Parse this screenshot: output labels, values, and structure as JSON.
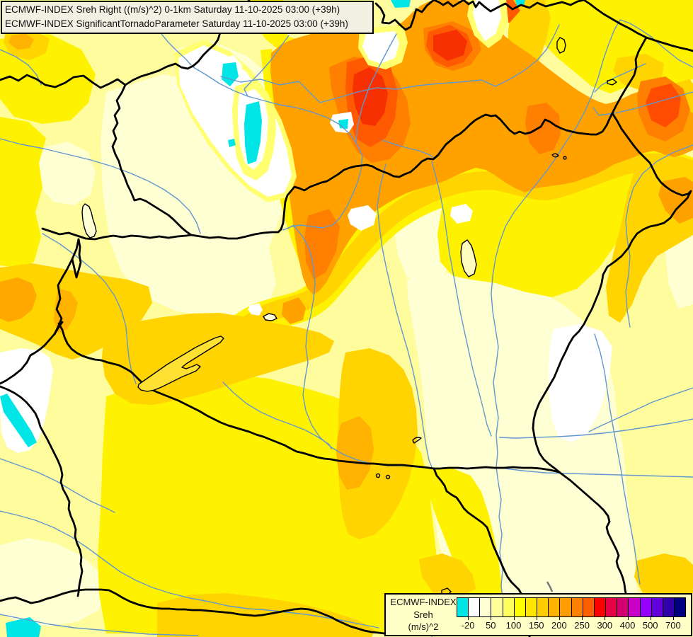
{
  "header": {
    "line1": "ECMWF-INDEX Sreh Right ((m/s)^2) 0-1km Saturday 11-10-2025 03:00 (+39h)",
    "line2": "ECMWF-INDEX SignificantTornadoParameter Saturday 11-10-2025 03:00 (+39h)"
  },
  "legend": {
    "title_line1": "ECMWF-INDEX",
    "title_line2": "Sreh",
    "title_line3": "(m/s)^2",
    "tick_labels": [
      "-20",
      "50",
      "100",
      "150",
      "200",
      "250",
      "300",
      "400",
      "500",
      "700"
    ],
    "scale_colors": [
      "#00E6E6",
      "#FFFFFF",
      "#FFFFD2",
      "#FFFF9C",
      "#FFFF5E",
      "#FFFF00",
      "#FFE600",
      "#FFCE00",
      "#FFB200",
      "#FF9C00",
      "#FF8000",
      "#FF5E00",
      "#FF0000",
      "#E60046",
      "#D2006E",
      "#C800C8",
      "#9600FF",
      "#6400DC",
      "#3200AA",
      "#000082"
    ]
  },
  "map": {
    "palette": {
      "base": "#FFFC9E",
      "cream": "#FFFFD4",
      "yellow": "#FFF200",
      "gold": "#FFD400",
      "amber": "#FFB200",
      "orange": "#FFA200",
      "dark_orange": "#FF8000",
      "red_orange": "#FF5A00",
      "red": "#F63000",
      "white_zone": "#FFFFFF",
      "cyan_zone": "#00E5E5",
      "river": "#6397CE",
      "border": "#000000",
      "lake": "#FFE133"
    }
  }
}
